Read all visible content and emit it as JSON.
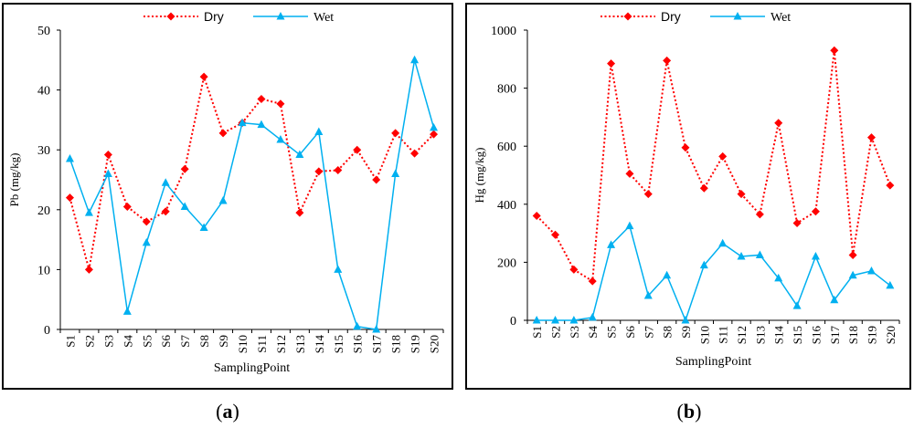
{
  "panels": [
    {
      "label_open": "(",
      "label_letter": "a",
      "label_close": ")"
    },
    {
      "label_open": "(",
      "label_letter": "b",
      "label_close": ")"
    }
  ],
  "colors": {
    "dry": "#ff0000",
    "wet": "#00b0f0",
    "axis": "#000000"
  },
  "chart_data": [
    {
      "type": "line",
      "categories": [
        "S1",
        "S2",
        "S3",
        "S4",
        "S5",
        "S6",
        "S7",
        "S8",
        "S9",
        "S10",
        "S11",
        "S12",
        "S13",
        "S14",
        "S15",
        "S16",
        "S17",
        "S18",
        "S19",
        "S20"
      ],
      "series": [
        {
          "name": "Dry",
          "values": [
            22,
            10,
            29.2,
            20.5,
            18,
            19.7,
            26.8,
            42.2,
            32.8,
            34.5,
            38.5,
            37.7,
            19.5,
            26.4,
            26.6,
            30,
            25,
            32.8,
            29.4,
            32.6
          ]
        },
        {
          "name": "Wet",
          "values": [
            28.5,
            19.5,
            26,
            3,
            14.5,
            24.5,
            20.5,
            17,
            21.5,
            34.5,
            34.2,
            31.7,
            29.2,
            33,
            10,
            0.5,
            0,
            26,
            45,
            33.7
          ]
        }
      ],
      "xlabel": "SamplingPoint",
      "ylabel": "Pb (mg/kg)",
      "ylim": [
        0,
        50
      ],
      "yticks": [
        "0",
        "10",
        "20",
        "30",
        "40",
        "50"
      ],
      "grid": false,
      "legend": "top"
    },
    {
      "type": "line",
      "categories": [
        "S1",
        "S2",
        "S3",
        "S4",
        "S5",
        "S6",
        "S7",
        "S8",
        "S9",
        "S10",
        "S11",
        "S12",
        "S13",
        "S14",
        "S15",
        "S16",
        "S17",
        "S18",
        "S19",
        "S20"
      ],
      "series": [
        {
          "name": "Dry",
          "values": [
            360,
            295,
            175,
            135,
            885,
            505,
            435,
            895,
            595,
            455,
            565,
            435,
            365,
            680,
            335,
            375,
            930,
            225,
            630,
            465
          ]
        },
        {
          "name": "Wet",
          "values": [
            0,
            0,
            0,
            10,
            260,
            325,
            85,
            155,
            0,
            190,
            265,
            220,
            225,
            145,
            50,
            220,
            70,
            155,
            170,
            120
          ]
        }
      ],
      "xlabel": "SamplingPoint",
      "ylabel": "Hg (mg/kg)",
      "ylim": [
        0,
        1000
      ],
      "yticks": [
        "0",
        "200",
        "400",
        "600",
        "800",
        "1000"
      ],
      "grid": false,
      "legend": "top"
    }
  ]
}
